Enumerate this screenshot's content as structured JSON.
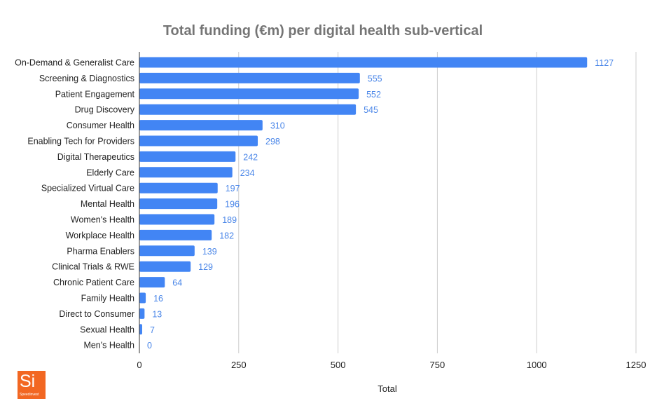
{
  "chart_data": {
    "type": "bar",
    "orientation": "horizontal",
    "title": "Total funding (€m) per digital health sub-vertical",
    "xlabel": "Total",
    "ylabel": "",
    "xlim": [
      0,
      1250
    ],
    "xticks": [
      0,
      250,
      500,
      750,
      1000,
      1250
    ],
    "grid": true,
    "categories": [
      "On-Demand & Generalist Care",
      "Screening & Diagnostics",
      "Patient Engagement",
      "Drug Discovery",
      "Consumer Health",
      "Enabling Tech for Providers",
      "Digital Therapeutics",
      "Elderly Care",
      "Specialized Virtual Care",
      "Mental Health",
      "Women's Health",
      "Workplace Health",
      "Pharma Enablers",
      "Clinical Trials & RWE",
      "Chronic Patient Care",
      "Family Health",
      "Direct to Consumer",
      "Sexual Health",
      "Men's Health"
    ],
    "series": [
      {
        "name": "Total",
        "values": [
          1127,
          555,
          552,
          545,
          310,
          298,
          242,
          234,
          197,
          196,
          189,
          182,
          139,
          129,
          64,
          16,
          13,
          7,
          0
        ]
      }
    ]
  },
  "colors": {
    "bar": "#4285f4",
    "data_label": "#4a86e8",
    "title": "#757575",
    "axis_text": "#222222",
    "grid": "#cccccc",
    "logo_bg": "#f26722"
  },
  "logo": {
    "mark": "Si",
    "word": "Speedinvest"
  }
}
